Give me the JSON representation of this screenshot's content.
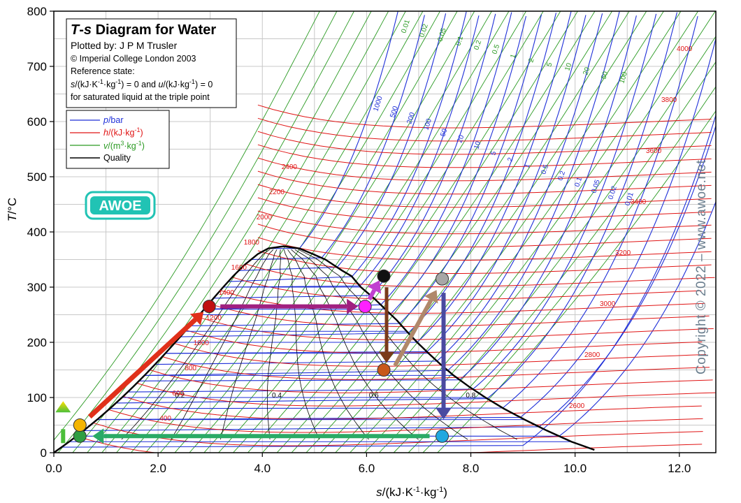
{
  "chart_data": {
    "type": "line",
    "title": "T-s Diagram for Water",
    "title_parts": {
      "t": "T",
      "dash": "-",
      "s": "s",
      "rest": " Diagram for Water"
    },
    "plotted_by": "Plotted by: J P M Trusler",
    "copyright_line": "© Imperial College London 2003",
    "reference_state": "Reference state:",
    "reference_line1": {
      "a": "s",
      "b": "/(kJ·K",
      "c": "-1",
      "d": "·kg",
      "e": "-1",
      "f": ") = 0 and ",
      "g": "u",
      "h": "/(kJ·kg",
      "i": "-1",
      "j": ") = 0"
    },
    "reference_line2": "for saturated liquid at the triple point",
    "xlabel": {
      "s": "s",
      "a": "/(kJ·K",
      "b": "-1",
      "c": "·kg",
      "d": "-1",
      "e": ")"
    },
    "ylabel": {
      "t": "T",
      "u": "/°C"
    },
    "xlim": [
      0,
      12.7
    ],
    "ylim": [
      0,
      800
    ],
    "x_ticks": [
      "0.0",
      "2.0",
      "4.0",
      "6.0",
      "8.0",
      "10.0",
      "12.0"
    ],
    "y_ticks": [
      "0",
      "100",
      "200",
      "300",
      "400",
      "500",
      "600",
      "700",
      "800"
    ],
    "legend": [
      {
        "name": "p",
        "unit": "/bar",
        "sup": "",
        "tail": "",
        "color": "#1e2fd8"
      },
      {
        "name": "h",
        "unit": "/(kJ·kg",
        "sup": "-1",
        "tail": ")",
        "color": "#e01414"
      },
      {
        "name": "v",
        "unit": "/(m",
        "sup": "3",
        "mid": "·kg",
        "sup2": "-1",
        "tail": ")",
        "color": "#2a9a22"
      },
      {
        "name": "",
        "unit": "Quality",
        "sup": "",
        "tail": "",
        "color": "#000000"
      }
    ],
    "logo": "AWOE",
    "watermark": "Copyright © 2022 – www.awoe.net",
    "saturation_dome": {
      "liquid": [
        [
          0,
          0
        ],
        [
          0.296,
          20
        ],
        [
          0.572,
          40
        ],
        [
          0.831,
          60
        ],
        [
          1.076,
          80
        ],
        [
          1.307,
          100
        ],
        [
          1.527,
          120
        ],
        [
          1.739,
          140
        ],
        [
          1.942,
          160
        ],
        [
          2.139,
          180
        ],
        [
          2.331,
          200
        ],
        [
          2.518,
          220
        ],
        [
          2.702,
          240
        ],
        [
          2.884,
          260
        ],
        [
          3.065,
          280
        ],
        [
          3.249,
          300
        ],
        [
          3.441,
          320
        ],
        [
          3.654,
          340
        ],
        [
          3.914,
          360
        ],
        [
          4.11,
          370
        ],
        [
          4.41,
          374
        ]
      ],
      "vapor": [
        [
          4.41,
          374
        ],
        [
          4.71,
          370
        ],
        [
          4.97,
          360
        ],
        [
          5.21,
          350
        ],
        [
          5.37,
          340
        ],
        [
          5.53,
          330
        ],
        [
          5.71,
          320
        ],
        [
          5.89,
          300
        ],
        [
          6.14,
          280
        ],
        [
          6.36,
          260
        ],
        [
          6.58,
          240
        ],
        [
          6.77,
          220
        ],
        [
          6.97,
          200
        ],
        [
          7.19,
          180
        ],
        [
          7.42,
          160
        ],
        [
          7.67,
          140
        ],
        [
          7.96,
          120
        ],
        [
          8.28,
          100
        ],
        [
          8.63,
          80
        ],
        [
          9.03,
          60
        ],
        [
          9.46,
          40
        ],
        [
          9.93,
          20
        ],
        [
          10.37,
          5
        ],
        [
          9.16,
          0
        ]
      ]
    },
    "quality_labels": [
      {
        "x": 2.6,
        "y": 105,
        "text": "0.2"
      },
      {
        "x": 4.6,
        "y": 105,
        "text": "0.4"
      },
      {
        "x": 6.6,
        "y": 105,
        "text": "0.6"
      },
      {
        "x": 8.6,
        "y": 105,
        "text": "0.8"
      }
    ],
    "pressure_labels": [
      "1000",
      "500",
      "200",
      "100",
      "50",
      "20",
      "10",
      "5",
      "2",
      "1",
      "0.5",
      "0.2",
      "0.1",
      "0.05",
      "0.02",
      "0.01"
    ],
    "enthalpy_labels_left": [
      "2400",
      "2200",
      "2000",
      "1800",
      "1600",
      "1400",
      "1200",
      "1000",
      "800",
      "600",
      "400"
    ],
    "enthalpy_labels_right": [
      "4000",
      "3800",
      "3600",
      "3400",
      "3200",
      "3000",
      "2800",
      "2600"
    ],
    "volume_labels": [
      "0.01",
      "0.02",
      "0.05",
      "0.1",
      "0.2",
      "0.5",
      "1",
      "2",
      "5",
      "10",
      "20",
      "50",
      "100"
    ],
    "process_points": [
      {
        "name": "pump-inlet",
        "s": 0.5,
        "T": 30,
        "color": "#2e9e42"
      },
      {
        "name": "pump-outlet",
        "s": 0.5,
        "T": 50,
        "color": "#f4b400"
      },
      {
        "name": "saturated-liquid",
        "s": 2.98,
        "T": 265,
        "color": "#c01010"
      },
      {
        "name": "saturated-vapor",
        "s": 5.97,
        "T": 265,
        "color": "#ff20ff"
      },
      {
        "name": "superheat",
        "s": 6.33,
        "T": 320,
        "color": "#111111"
      },
      {
        "name": "reheat-inlet",
        "s": 6.33,
        "T": 150,
        "color": "#c8581a"
      },
      {
        "name": "reheat-outlet",
        "s": 7.45,
        "T": 315,
        "color": "#a7a7a7"
      },
      {
        "name": "turbine-exit",
        "s": 7.45,
        "T": 30,
        "color": "#20a8e0"
      }
    ]
  }
}
